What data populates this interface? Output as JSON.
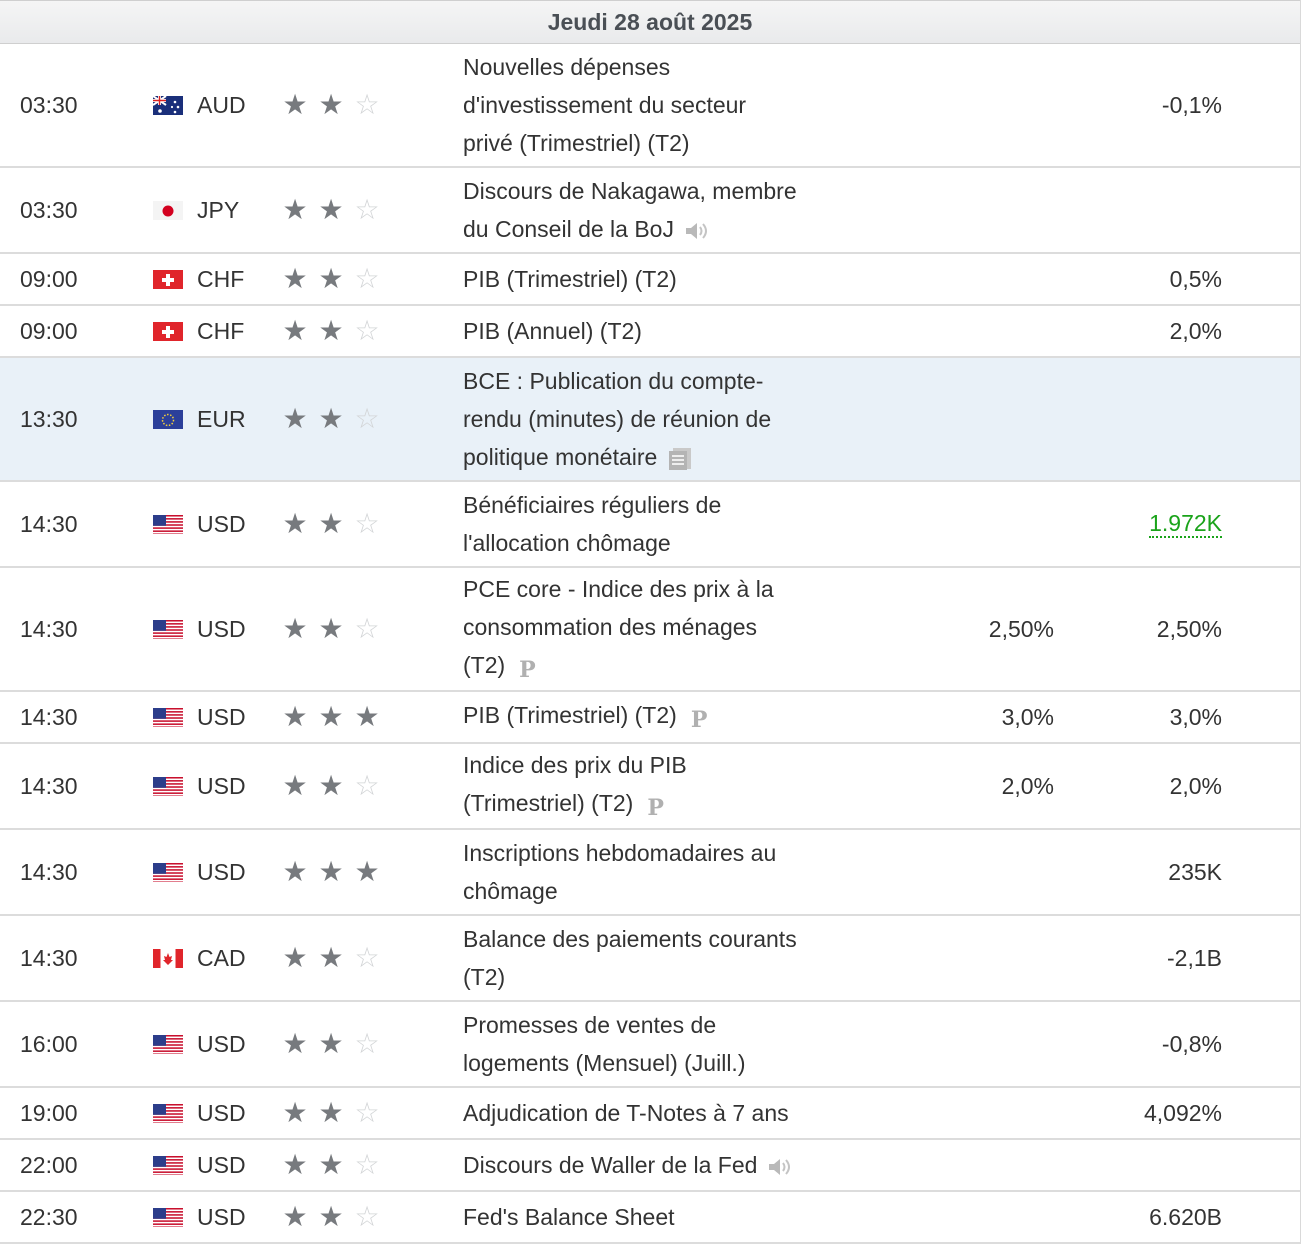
{
  "header": {
    "date": "Jeudi 28 août 2025"
  },
  "events": [
    {
      "time": "03:30",
      "currency": "AUD",
      "flag": "au",
      "importance": 2,
      "event_lines": [
        "Nouvelles dépenses",
        "d'investissement du secteur",
        "privé (Trimestriel) (T2)"
      ],
      "forecast": "",
      "previous": "-0,1%",
      "icon": ""
    },
    {
      "time": "03:30",
      "currency": "JPY",
      "flag": "jp",
      "importance": 2,
      "event_lines": [
        "Discours de Nakagawa, membre",
        "du Conseil de la BoJ"
      ],
      "forecast": "",
      "previous": "",
      "icon": "speaker-icon"
    },
    {
      "time": "09:00",
      "currency": "CHF",
      "flag": "ch",
      "importance": 2,
      "event_lines": [
        "PIB (Trimestriel) (T2)"
      ],
      "forecast": "",
      "previous": "0,5%",
      "icon": ""
    },
    {
      "time": "09:00",
      "currency": "CHF",
      "flag": "ch",
      "importance": 2,
      "event_lines": [
        "PIB (Annuel) (T2)"
      ],
      "forecast": "",
      "previous": "2,0%",
      "icon": ""
    },
    {
      "time": "13:30",
      "currency": "EUR",
      "flag": "eu",
      "importance": 2,
      "event_lines": [
        "BCE : Publication du compte-",
        "rendu (minutes) de réunion de",
        "politique monétaire"
      ],
      "forecast": "",
      "previous": "",
      "icon": "document-icon",
      "highlight": true
    },
    {
      "time": "14:30",
      "currency": "USD",
      "flag": "us",
      "importance": 2,
      "event_lines": [
        "Bénéficiaires réguliers de",
        "l'allocation chômage"
      ],
      "forecast": "",
      "previous": "1.972K",
      "previous_color": "#1aa31a",
      "icon": ""
    },
    {
      "time": "14:30",
      "currency": "USD",
      "flag": "us",
      "importance": 2,
      "event_lines": [
        "PCE core - Indice des prix à la",
        "consommation des ménages",
        "(T2)"
      ],
      "forecast": "2,50%",
      "previous": "2,50%",
      "icon": "preliminary-icon"
    },
    {
      "time": "14:30",
      "currency": "USD",
      "flag": "us",
      "importance": 3,
      "event_lines": [
        "PIB (Trimestriel) (T2)"
      ],
      "forecast": "3,0%",
      "previous": "3,0%",
      "icon": "preliminary-icon"
    },
    {
      "time": "14:30",
      "currency": "USD",
      "flag": "us",
      "importance": 2,
      "event_lines": [
        "Indice des prix du PIB",
        "(Trimestriel) (T2)"
      ],
      "forecast": "2,0%",
      "previous": "2,0%",
      "icon": "preliminary-icon"
    },
    {
      "time": "14:30",
      "currency": "USD",
      "flag": "us",
      "importance": 3,
      "event_lines": [
        "Inscriptions hebdomadaires au",
        "chômage"
      ],
      "forecast": "",
      "previous": "235K",
      "icon": ""
    },
    {
      "time": "14:30",
      "currency": "CAD",
      "flag": "ca",
      "importance": 2,
      "event_lines": [
        "Balance des paiements courants",
        "(T2)"
      ],
      "forecast": "",
      "previous": "-2,1B",
      "icon": ""
    },
    {
      "time": "16:00",
      "currency": "USD",
      "flag": "us",
      "importance": 2,
      "event_lines": [
        "Promesses de ventes de",
        "logements (Mensuel) (Juill.)"
      ],
      "forecast": "",
      "previous": "-0,8%",
      "icon": ""
    },
    {
      "time": "19:00",
      "currency": "USD",
      "flag": "us",
      "importance": 2,
      "event_lines": [
        "Adjudication de T-Notes à 7 ans"
      ],
      "forecast": "",
      "previous": "4,092%",
      "icon": ""
    },
    {
      "time": "22:00",
      "currency": "USD",
      "flag": "us",
      "importance": 2,
      "event_lines": [
        "Discours de Waller de la Fed"
      ],
      "forecast": "",
      "previous": "",
      "icon": "speaker-icon"
    },
    {
      "time": "22:30",
      "currency": "USD",
      "flag": "us",
      "importance": 2,
      "event_lines": [
        "Fed's Balance Sheet"
      ],
      "forecast": "",
      "previous": "6.620B",
      "icon": ""
    }
  ]
}
